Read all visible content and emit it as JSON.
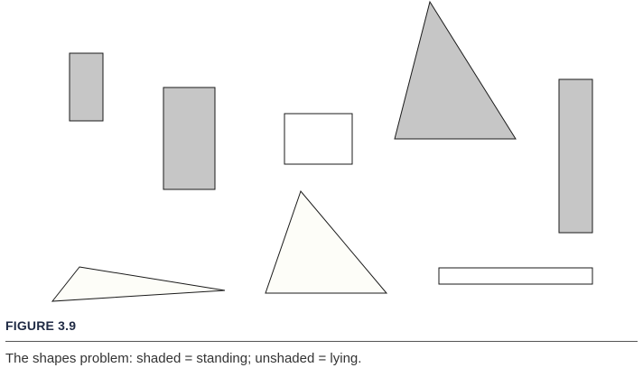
{
  "figure": {
    "label": "FIGURE 3.9",
    "caption": "The shapes problem: shaded = standing; unshaded = lying."
  },
  "colors": {
    "shaded": "#c6c6c6",
    "unshaded": "#ffffff",
    "unshaded_triangle": "#fdfdf8",
    "outline": "#1a1a1a",
    "label": "#1f2a44"
  },
  "shapes": [
    {
      "kind": "rectangle",
      "status": "shaded"
    },
    {
      "kind": "rectangle",
      "status": "shaded"
    },
    {
      "kind": "rectangle",
      "status": "unshaded"
    },
    {
      "kind": "triangle",
      "status": "shaded"
    },
    {
      "kind": "rectangle",
      "status": "shaded"
    },
    {
      "kind": "triangle",
      "status": "unshaded"
    },
    {
      "kind": "triangle",
      "status": "unshaded"
    },
    {
      "kind": "rectangle",
      "status": "unshaded"
    }
  ]
}
